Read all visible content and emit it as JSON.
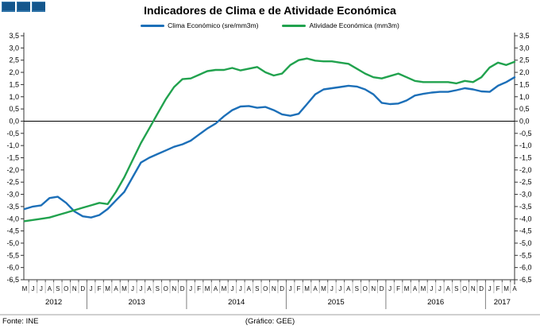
{
  "header": {
    "title": "Indicadores de Clima e de Atividade Económica",
    "logo_squares": 3,
    "logo_color": "#14568c"
  },
  "legend": [
    {
      "label": "Clima Económico (sre/mm3m)",
      "color": "#1c6fb8"
    },
    {
      "label": "Atividade Económica (mm3m)",
      "color": "#21a24e"
    }
  ],
  "footer": {
    "source": "Fonte: INE",
    "credit": "(Gráfico: GEE)"
  },
  "chart_data": {
    "type": "line",
    "title": "Indicadores de Clima e de Atividade Económica",
    "ylim": [
      -6.5,
      3.5
    ],
    "ytick_step": 0.5,
    "y_axis_sides": "both",
    "grid": false,
    "zero_line": true,
    "axis_color": "#333333",
    "decimal_separator": ",",
    "x_labels": [
      "M",
      "J",
      "J",
      "A",
      "S",
      "O",
      "N",
      "D",
      "J",
      "F",
      "M",
      "A",
      "M",
      "J",
      "J",
      "A",
      "S",
      "O",
      "N",
      "D",
      "J",
      "F",
      "M",
      "A",
      "M",
      "J",
      "J",
      "A",
      "S",
      "O",
      "N",
      "D",
      "J",
      "F",
      "M",
      "A",
      "M",
      "J",
      "J",
      "A",
      "S",
      "O",
      "N",
      "D",
      "J",
      "F",
      "M",
      "A",
      "M",
      "J",
      "J",
      "A",
      "S",
      "O",
      "N",
      "D",
      "J",
      "F",
      "M",
      "A"
    ],
    "year_groups": [
      {
        "label": "2012",
        "count": 8
      },
      {
        "label": "2013",
        "count": 12
      },
      {
        "label": "2014",
        "count": 12
      },
      {
        "label": "2015",
        "count": 12
      },
      {
        "label": "2016",
        "count": 12
      },
      {
        "label": "2017",
        "count": 4
      }
    ],
    "series": [
      {
        "name": "Clima Económico (sre/mm3m)",
        "color": "#1c6fb8",
        "values": [
          -3.6,
          -3.5,
          -3.45,
          -3.15,
          -3.1,
          -3.35,
          -3.7,
          -3.9,
          -3.95,
          -3.85,
          -3.6,
          -3.25,
          -2.9,
          -2.3,
          -1.7,
          -1.5,
          -1.35,
          -1.2,
          -1.05,
          -0.95,
          -0.8,
          -0.55,
          -0.3,
          -0.1,
          0.2,
          0.45,
          0.6,
          0.62,
          0.55,
          0.58,
          0.45,
          0.28,
          0.22,
          0.3,
          0.7,
          1.1,
          1.3,
          1.35,
          1.4,
          1.45,
          1.42,
          1.3,
          1.1,
          0.75,
          0.7,
          0.72,
          0.85,
          1.05,
          1.12,
          1.17,
          1.2,
          1.2,
          1.27,
          1.35,
          1.3,
          1.22,
          1.2,
          1.45,
          1.6,
          1.8
        ]
      },
      {
        "name": "Atividade Económica (mm3m)",
        "color": "#21a24e",
        "values": [
          -4.1,
          -4.05,
          -4.0,
          -3.95,
          -3.85,
          -3.75,
          -3.65,
          -3.55,
          -3.45,
          -3.35,
          -3.4,
          -2.9,
          -2.3,
          -1.6,
          -0.9,
          -0.3,
          0.3,
          0.9,
          1.4,
          1.72,
          1.75,
          1.9,
          2.05,
          2.1,
          2.1,
          2.18,
          2.08,
          2.15,
          2.22,
          2.0,
          1.87,
          1.95,
          2.3,
          2.5,
          2.57,
          2.48,
          2.45,
          2.45,
          2.4,
          2.35,
          2.15,
          1.95,
          1.8,
          1.75,
          1.85,
          1.95,
          1.8,
          1.65,
          1.6,
          1.6,
          1.6,
          1.6,
          1.55,
          1.65,
          1.6,
          1.8,
          2.2,
          2.4,
          2.3,
          2.43
        ]
      }
    ]
  }
}
